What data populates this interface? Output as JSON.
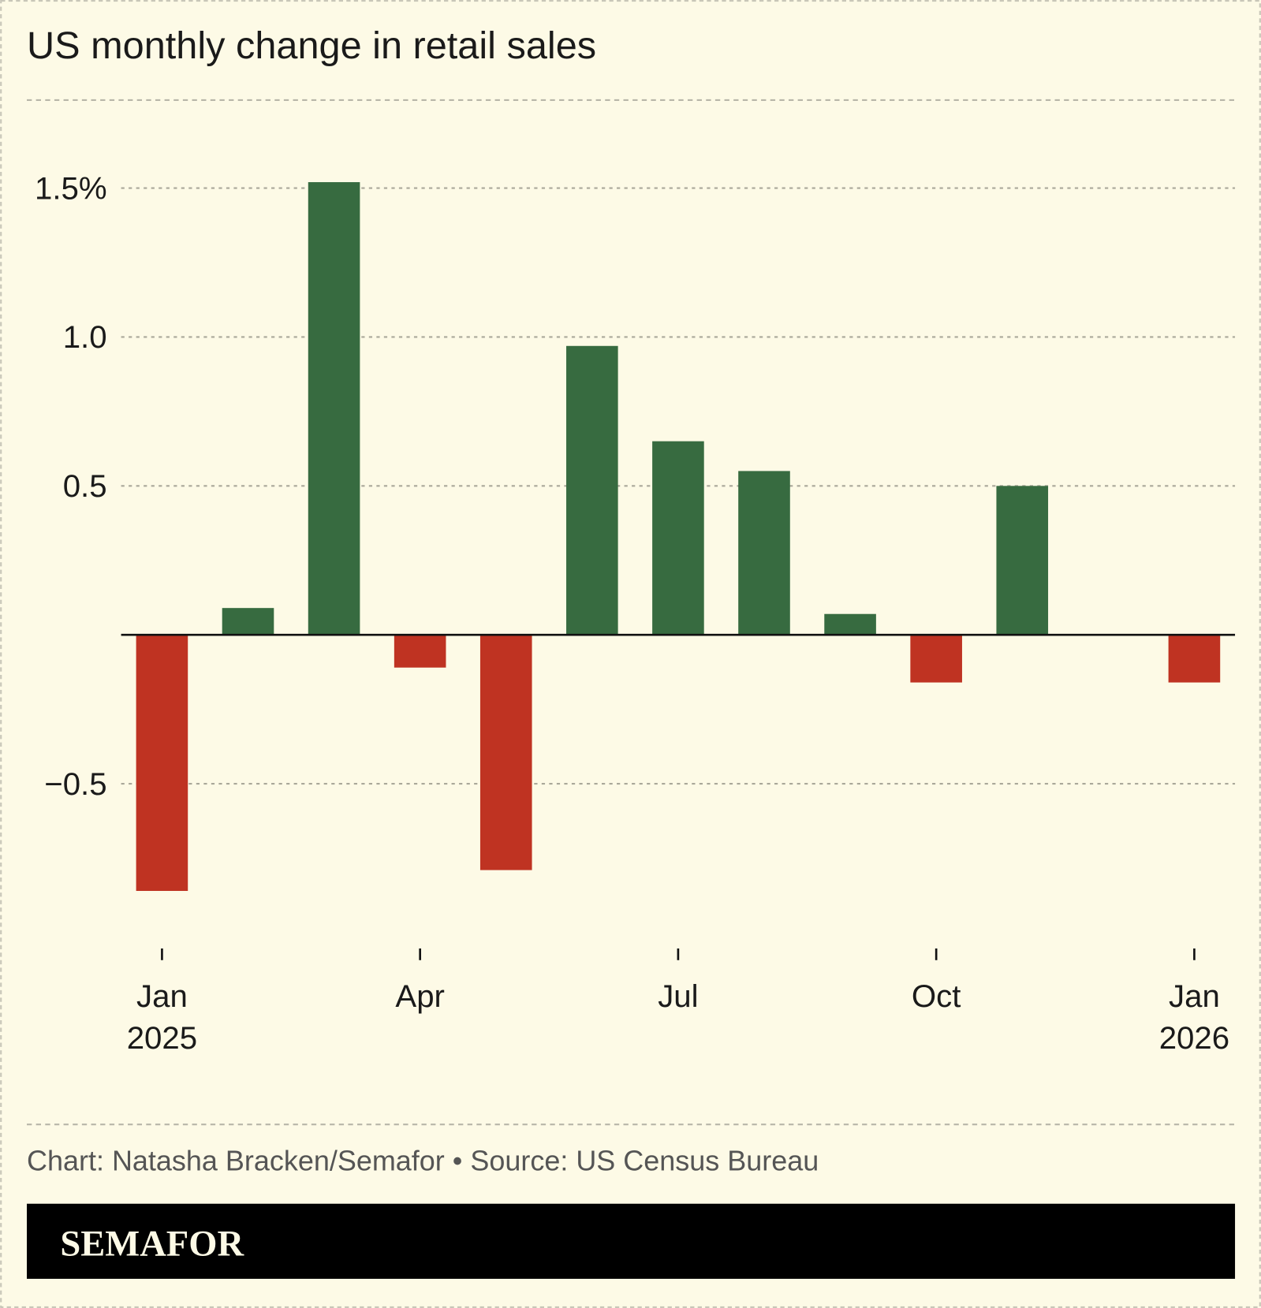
{
  "chart_data": {
    "type": "bar",
    "title": "US monthly change in retail sales",
    "categories": [
      "Jan 2025",
      "Feb 2025",
      "Mar 2025",
      "Apr 2025",
      "May 2025",
      "Jun 2025",
      "Jul 2025",
      "Aug 2025",
      "Sep 2025",
      "Oct 2025",
      "Nov 2025",
      "Dec 2025",
      "Jan 2026"
    ],
    "values": [
      -0.86,
      0.09,
      1.52,
      -0.11,
      -0.79,
      0.97,
      0.65,
      0.55,
      0.07,
      -0.16,
      0.5,
      0,
      -0.16
    ],
    "ylim": [
      -1.0,
      1.6
    ],
    "yticks": [
      {
        "value": 1.5,
        "label": "1.5%"
      },
      {
        "value": 1.0,
        "label": "1.0"
      },
      {
        "value": 0.5,
        "label": "0.5"
      },
      {
        "value": -0.5,
        "label": "−0.5"
      }
    ],
    "xticks": [
      {
        "index": 0,
        "line1": "Jan",
        "line2": "2025"
      },
      {
        "index": 3,
        "line1": "Apr",
        "line2": ""
      },
      {
        "index": 6,
        "line1": "Jul",
        "line2": ""
      },
      {
        "index": 9,
        "line1": "Oct",
        "line2": ""
      },
      {
        "index": 12,
        "line1": "Jan",
        "line2": "2026"
      }
    ],
    "grid": true,
    "colors": {
      "positive": "#376b40",
      "negative": "#bf3322",
      "background": "#fdfae6"
    }
  },
  "footer": {
    "credit": "Chart: Natasha Bracken/Semafor • Source: US Census Bureau",
    "logo": "SEMAFOR"
  }
}
